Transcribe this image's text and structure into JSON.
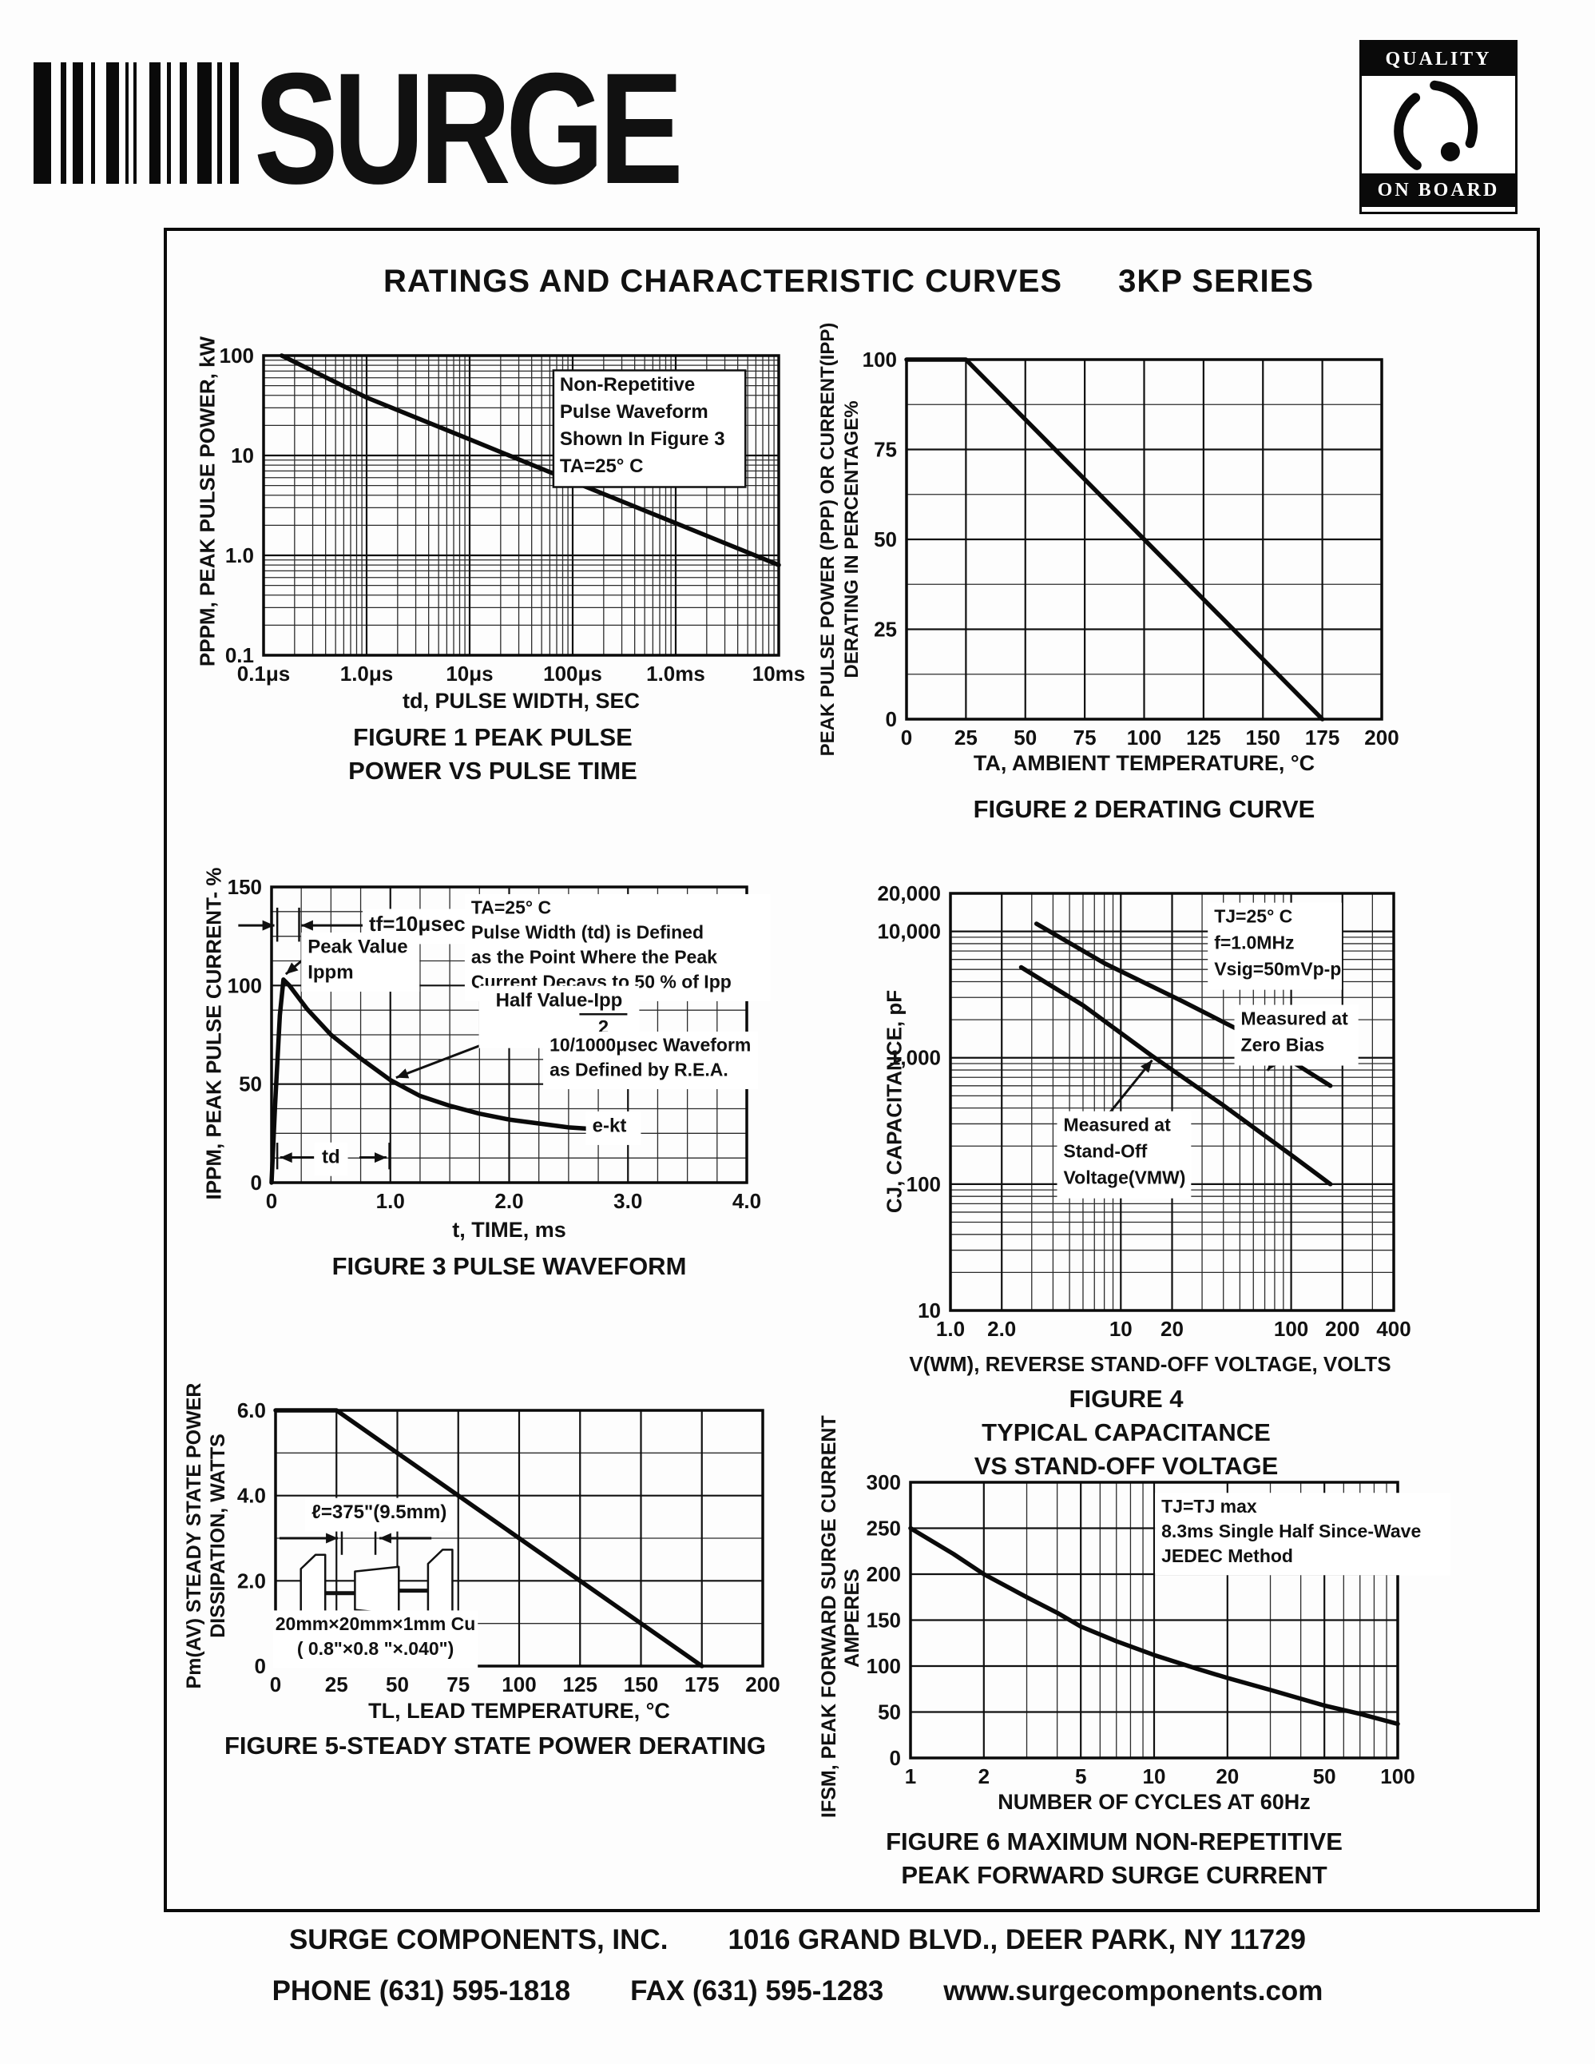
{
  "header": {
    "title": "RATINGS AND CHARACTERISTIC CURVES",
    "series": "3KP SERIES"
  },
  "logo": {
    "company": "SURGE"
  },
  "badge": {
    "top": "QUALITY",
    "bottom": "ON BOARD"
  },
  "footer": {
    "company": "SURGE COMPONENTS, INC.",
    "address": "1016 GRAND BLVD., DEER PARK, NY  11729",
    "phone": "PHONE (631) 595-1818",
    "fax": "FAX (631) 595-1283",
    "website": "www.surgecomponents.com"
  },
  "chart_data": [
    {
      "id": "fig1",
      "type": "line",
      "captions": [
        "FIGURE 1 PEAK PULSE",
        "POWER VS PULSE TIME"
      ],
      "xlabel": "td, PULSE WIDTH, SEC",
      "ylabel_lines": [
        "PPPM, PEAK PULSE POWER, kW"
      ],
      "x_scale": "log",
      "y_scale": "log",
      "x_range": [
        1e-07,
        0.01
      ],
      "y_range": [
        0.1,
        100
      ],
      "x_ticks": [
        {
          "v": 1e-07,
          "l": "0.1μs"
        },
        {
          "v": 1e-06,
          "l": "1.0μs"
        },
        {
          "v": 1e-05,
          "l": "10μs"
        },
        {
          "v": 0.0001,
          "l": "100μs"
        },
        {
          "v": 0.001,
          "l": "1.0ms"
        },
        {
          "v": 0.01,
          "l": "10ms"
        }
      ],
      "y_ticks": [
        {
          "v": 100,
          "l": "100"
        },
        {
          "v": 10,
          "l": "10"
        },
        {
          "v": 1,
          "l": "1.0"
        },
        {
          "v": 0.1,
          "l": "0.1"
        }
      ],
      "series": [
        {
          "name": "peak-pulse-power",
          "points": [
            [
              1.5e-07,
              100
            ],
            [
              1e-06,
              38
            ],
            [
              1e-05,
              14.5
            ],
            [
              0.0001,
              5.5
            ],
            [
              0.001,
              2.1
            ],
            [
              0.01,
              0.8
            ]
          ]
        }
      ],
      "annotations": [
        {
          "fx": 0.575,
          "fy": 0.06,
          "align": "start",
          "boxed": true,
          "size": 24,
          "lh": 34,
          "lines": [
            "Non-Repetitive",
            "Pulse Waveform",
            "Shown In Figure 3",
            "TA=25° C"
          ]
        }
      ]
    },
    {
      "id": "fig2",
      "type": "line",
      "captions": [
        "FIGURE 2 DERATING CURVE"
      ],
      "xlabel": "TA, AMBIENT  TEMPERATURE, °C",
      "ylabel_lines": [
        "PEAK PULSE POWER (PPP) OR CURRENT(IPP)",
        "DERATING IN PERCENTAGE%"
      ],
      "x_scale": "linear",
      "y_scale": "linear",
      "x_range": [
        0,
        200
      ],
      "y_range": [
        0,
        100
      ],
      "grid": {
        "y_step": 12.5
      },
      "x_ticks": [
        {
          "v": 0,
          "l": "0"
        },
        {
          "v": 25,
          "l": "25"
        },
        {
          "v": 50,
          "l": "50"
        },
        {
          "v": 75,
          "l": "75"
        },
        {
          "v": 100,
          "l": "100"
        },
        {
          "v": 125,
          "l": "125"
        },
        {
          "v": 150,
          "l": "150"
        },
        {
          "v": 175,
          "l": "175"
        },
        {
          "v": 200,
          "l": "200"
        }
      ],
      "y_ticks": [
        {
          "v": 100,
          "l": "100"
        },
        {
          "v": 75,
          "l": "75"
        },
        {
          "v": 50,
          "l": "50"
        },
        {
          "v": 25,
          "l": "25"
        },
        {
          "v": 0,
          "l": "0"
        }
      ],
      "series": [
        {
          "name": "derating",
          "points": [
            [
              0,
              100
            ],
            [
              25,
              100
            ],
            [
              175,
              0
            ]
          ]
        }
      ],
      "annotations": []
    },
    {
      "id": "fig3",
      "type": "line",
      "captions": [
        "FIGURE 3  PULSE WAVEFORM"
      ],
      "xlabel": "t, TIME, ms",
      "ylabel_lines": [
        "IPPM, PEAK PULSE CURRENT- %"
      ],
      "x_scale": "linear",
      "y_scale": "linear",
      "x_range": [
        0,
        4
      ],
      "y_range": [
        0,
        150
      ],
      "grid": {
        "x_step": 0.25,
        "y_step": 12.5
      },
      "x_ticks": [
        {
          "v": 0,
          "l": "0"
        },
        {
          "v": 1,
          "l": "1.0"
        },
        {
          "v": 2,
          "l": "2.0"
        },
        {
          "v": 3,
          "l": "3.0"
        },
        {
          "v": 4,
          "l": "4.0"
        }
      ],
      "y_ticks": [
        {
          "v": 150,
          "l": "150"
        },
        {
          "v": 100,
          "l": "100"
        },
        {
          "v": 50,
          "l": "50"
        },
        {
          "v": 0,
          "l": "0"
        }
      ],
      "series": [
        {
          "name": "pulse-waveform",
          "points": [
            [
              0,
              0
            ],
            [
              0.03,
              40
            ],
            [
              0.07,
              85
            ],
            [
              0.1,
              103
            ],
            [
              0.15,
              100
            ],
            [
              0.3,
              88
            ],
            [
              0.5,
              75
            ],
            [
              0.75,
              63
            ],
            [
              1.0,
              52
            ],
            [
              1.25,
              44
            ],
            [
              1.5,
              39
            ],
            [
              1.75,
              35
            ],
            [
              2.0,
              32
            ],
            [
              2.25,
              30
            ],
            [
              2.5,
              28
            ],
            [
              2.75,
              27
            ],
            [
              3.0,
              27
            ]
          ]
        }
      ],
      "annotations": [
        {
          "fx": 0.205,
          "fy": 0.085,
          "align": "start",
          "size": 26,
          "lh": 34,
          "lines": [
            "tf=10μsec"
          ]
        },
        {
          "fx": 0.076,
          "fy": 0.165,
          "align": "start",
          "size": 24,
          "lh": 32,
          "lines": [
            "Peak Value",
            "Ippm"
          ]
        },
        {
          "fx": 0.42,
          "fy": 0.035,
          "align": "start",
          "size": 23,
          "lh": 31,
          "lines": [
            "TA=25° C",
            "Pulse Width (td) is Defined",
            "as the Point Where the Peak",
            "Current Decays to 50 % of Ipp"
          ]
        },
        {
          "fx": 0.605,
          "fy": 0.345,
          "align": "middle",
          "size": 24,
          "lh": 34,
          "fracbar": true,
          "lines": [
            "Half Value-Ipp",
            "2"
          ]
        },
        {
          "fx": 0.585,
          "fy": 0.5,
          "align": "start",
          "size": 23,
          "lh": 31,
          "lines": [
            "10/1000μsec Waveform",
            "as Defined by R.E.A."
          ]
        },
        {
          "fx": 0.675,
          "fy": 0.77,
          "align": "start",
          "size": 24,
          "lh": 32,
          "lines": [
            "e-kt"
          ]
        },
        {
          "fx": 0.125,
          "fy": 0.875,
          "align": "middle",
          "size": 24,
          "lh": 32,
          "lines": [
            "td"
          ]
        }
      ],
      "marks": [
        {
          "x1": 0.012,
          "y1": 0.07,
          "x2": 0.012,
          "y2": 0.185
        },
        {
          "x1": 0.058,
          "y1": 0.07,
          "x2": 0.058,
          "y2": 0.185
        },
        {
          "x1": 0.012,
          "y1": 0.865,
          "x2": 0.012,
          "y2": 0.955
        },
        {
          "x1": 0.248,
          "y1": 0.865,
          "x2": 0.248,
          "y2": 0.955
        }
      ],
      "arrows": [
        {
          "x1": -0.07,
          "y1": 0.13,
          "x2": 0.006,
          "y2": 0.13
        },
        {
          "x1": 0.195,
          "y1": 0.13,
          "x2": 0.062,
          "y2": 0.13
        },
        {
          "x1": 0.1,
          "y1": 0.915,
          "x2": 0.018,
          "y2": 0.915
        },
        {
          "x1": 0.185,
          "y1": 0.915,
          "x2": 0.242,
          "y2": 0.915
        },
        {
          "x1": 0.555,
          "y1": 0.465,
          "x2": 0.262,
          "y2": 0.645
        },
        {
          "x1": 0.085,
          "y1": 0.22,
          "x2": 0.03,
          "y2": 0.295
        }
      ]
    },
    {
      "id": "fig4",
      "type": "line",
      "captions": [
        "FIGURE 4",
        "TYPICAL CAPACITANCE",
        "VS STAND-OFF VOLTAGE"
      ],
      "xlabel": "V(WM), REVERSE STAND-OFF VOLTAGE, VOLTS",
      "ylabel_lines": [
        "CJ, CAPACITANCE, pF"
      ],
      "x_scale": "log",
      "y_scale": "log",
      "x_range": [
        1,
        400
      ],
      "y_range": [
        10,
        20000
      ],
      "x_ticks": [
        {
          "v": 1,
          "l": "1.0"
        },
        {
          "v": 2,
          "l": "2.0"
        },
        {
          "v": 10,
          "l": "10"
        },
        {
          "v": 20,
          "l": "20"
        },
        {
          "v": 100,
          "l": "100"
        },
        {
          "v": 200,
          "l": "200"
        },
        {
          "v": 400,
          "l": "400"
        }
      ],
      "y_ticks": [
        {
          "v": 20000,
          "l": "20,000"
        },
        {
          "v": 10000,
          "l": "10,000"
        },
        {
          "v": 1000,
          "l": "1,000"
        },
        {
          "v": 100,
          "l": "100"
        },
        {
          "v": 10,
          "l": "10"
        }
      ],
      "series": [
        {
          "name": "measured-at-zero-bias",
          "points": [
            [
              3.2,
              11500
            ],
            [
              8,
              5600
            ],
            [
              23,
              2800
            ],
            [
              60,
              1450
            ],
            [
              170,
              600
            ]
          ]
        },
        {
          "name": "measured-at-stand-off-voltage",
          "points": [
            [
              2.6,
              5200
            ],
            [
              6,
              2600
            ],
            [
              15,
              1050
            ],
            [
              40,
              420
            ],
            [
              100,
              170
            ],
            [
              170,
              100
            ]
          ]
        }
      ],
      "annotations": [
        {
          "fx": 0.595,
          "fy": 0.03,
          "align": "start",
          "size": 23,
          "lh": 33,
          "lines": [
            "TJ=25° C",
            "f=1.0MHz",
            "Vsig=50mVp-p"
          ]
        },
        {
          "fx": 0.655,
          "fy": 0.275,
          "align": "start",
          "size": 23,
          "lh": 33,
          "lines": [
            "Measured at",
            "Zero Bias"
          ]
        },
        {
          "fx": 0.255,
          "fy": 0.53,
          "align": "start",
          "size": 23,
          "lh": 33,
          "lines": [
            "Measured at",
            "Stand-Off",
            "Voltage(VMW)"
          ]
        }
      ],
      "arrows": [
        {
          "x1": 0.77,
          "y1": 0.345,
          "x2": 0.715,
          "y2": 0.425
        },
        {
          "x1": 0.36,
          "y1": 0.525,
          "x2": 0.455,
          "y2": 0.4
        }
      ]
    },
    {
      "id": "fig5",
      "type": "line",
      "captions": [
        "FIGURE 5-STEADY STATE POWER DERATING"
      ],
      "xlabel": "TL, LEAD  TEMPERATURE, °C",
      "ylabel_lines": [
        "Pm(AV) STEADY STATE POWER",
        "DISSIPATION, WATTS"
      ],
      "x_scale": "linear",
      "y_scale": "linear",
      "x_range": [
        0,
        200
      ],
      "y_range": [
        0,
        6
      ],
      "grid": {
        "y_step": 1
      },
      "x_ticks": [
        {
          "v": 0,
          "l": "0"
        },
        {
          "v": 25,
          "l": "25"
        },
        {
          "v": 50,
          "l": "50"
        },
        {
          "v": 75,
          "l": "75"
        },
        {
          "v": 100,
          "l": "100"
        },
        {
          "v": 125,
          "l": "125"
        },
        {
          "v": 150,
          "l": "150"
        },
        {
          "v": 175,
          "l": "175"
        },
        {
          "v": 200,
          "l": "200"
        }
      ],
      "y_ticks": [
        {
          "v": 6,
          "l": "6.0"
        },
        {
          "v": 4,
          "l": "4.0"
        },
        {
          "v": 2,
          "l": "2.0"
        },
        {
          "v": 0,
          "l": "0"
        }
      ],
      "series": [
        {
          "name": "steady-state-power",
          "points": [
            [
              0,
              6
            ],
            [
              25,
              6
            ],
            [
              175,
              0
            ]
          ]
        }
      ],
      "annotations": [
        {
          "fx": 0.074,
          "fy": 0.355,
          "align": "start",
          "size": 24,
          "lh": 32,
          "lines": [
            "ℓ=375\"(9.5mm)"
          ]
        },
        {
          "fx": 0.205,
          "fy": 0.795,
          "align": "middle",
          "size": 23,
          "lh": 31,
          "lines": [
            "20mm×20mm×1mm Cu",
            "( 0.8\"×0.8 \"×.040\")"
          ]
        }
      ],
      "marks": [
        {
          "x1": 0.136,
          "y1": 0.43,
          "x2": 0.136,
          "y2": 0.565
        },
        {
          "x1": 0.205,
          "y1": 0.43,
          "x2": 0.205,
          "y2": 0.565
        }
      ],
      "arrows": [
        {
          "x1": 0.008,
          "y1": 0.5,
          "x2": 0.128,
          "y2": 0.5
        },
        {
          "x1": 0.32,
          "y1": 0.5,
          "x2": 0.213,
          "y2": 0.5
        }
      ],
      "device": true
    },
    {
      "id": "fig6",
      "type": "line",
      "captions": [
        "FIGURE 6  MAXIMUM NON-REPETITIVE",
        "PEAK FORWARD SURGE CURRENT"
      ],
      "xlabel": "NUMBER  OF  CYCLES  AT  60Hz",
      "ylabel_lines": [
        "IFSM, PEAK FORWARD SURGE CURRENT",
        "AMPERES"
      ],
      "x_scale": "log",
      "y_scale": "linear",
      "x_range": [
        1,
        100
      ],
      "y_range": [
        0,
        300
      ],
      "x_ticks": [
        {
          "v": 1,
          "l": "1"
        },
        {
          "v": 2,
          "l": "2"
        },
        {
          "v": 5,
          "l": "5"
        },
        {
          "v": 10,
          "l": "10"
        },
        {
          "v": 20,
          "l": "20"
        },
        {
          "v": 50,
          "l": "50"
        },
        {
          "v": 100,
          "l": "100"
        }
      ],
      "y_ticks": [
        {
          "v": 0,
          "l": "0"
        },
        {
          "v": 50,
          "l": "50"
        },
        {
          "v": 100,
          "l": "100"
        },
        {
          "v": 150,
          "l": "150"
        },
        {
          "v": 200,
          "l": "200"
        },
        {
          "v": 250,
          "l": "250"
        },
        {
          "v": 300,
          "l": "300"
        }
      ],
      "series": [
        {
          "name": "peak-forward-surge-current",
          "points": [
            [
              1,
              250
            ],
            [
              1.5,
              222
            ],
            [
              2,
              200
            ],
            [
              3,
              175
            ],
            [
              4,
              158
            ],
            [
              5,
              143
            ],
            [
              7,
              127
            ],
            [
              10,
              112
            ],
            [
              15,
              97
            ],
            [
              20,
              87
            ],
            [
              30,
              74
            ],
            [
              50,
              57
            ],
            [
              70,
              48
            ],
            [
              100,
              37
            ]
          ]
        }
      ],
      "annotations": [
        {
          "fx": 0.515,
          "fy": 0.05,
          "align": "start",
          "size": 23,
          "lh": 31,
          "lines": [
            "TJ=TJ max",
            "8.3ms Single Half Since-Wave",
            "JEDEC Method"
          ]
        }
      ]
    }
  ]
}
